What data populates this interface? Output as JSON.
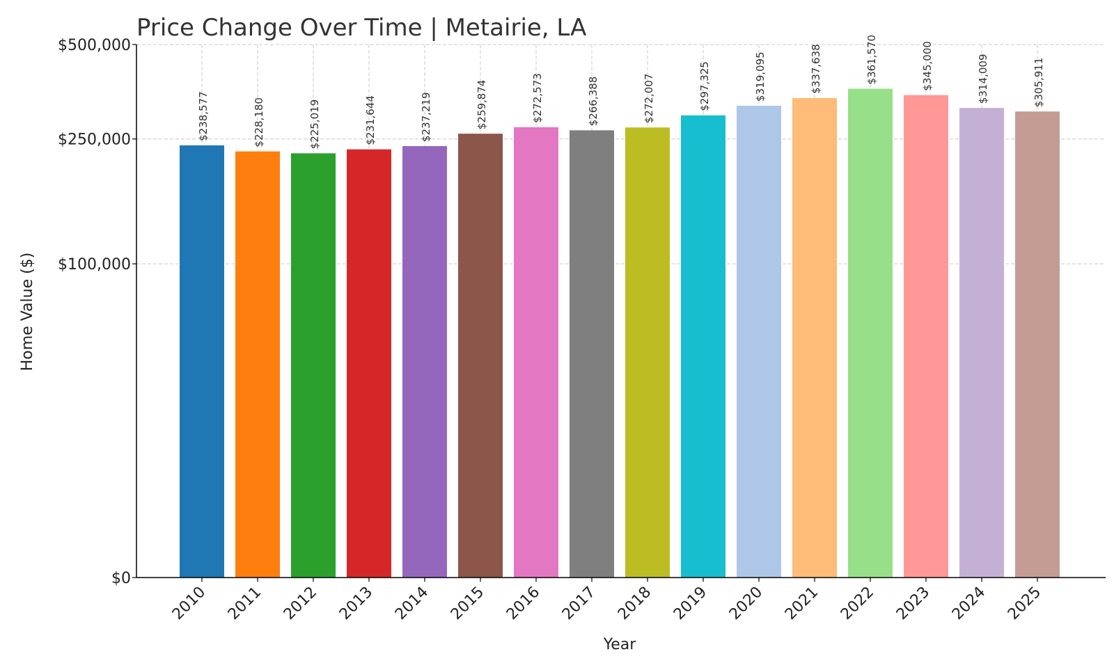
{
  "chart_data": {
    "type": "bar",
    "title": "Price Change Over Time | Metairie, LA",
    "xlabel": "Year",
    "ylabel": "Home Value ($)",
    "y_scale": "symlog",
    "ylim": [
      0,
      500000
    ],
    "yticks": [
      0,
      100000,
      250000,
      500000
    ],
    "ytick_labels": [
      "$0",
      "$100,000",
      "$250,000",
      "$500,000"
    ],
    "grid": true,
    "categories": [
      "2010",
      "2011",
      "2012",
      "2013",
      "2014",
      "2015",
      "2016",
      "2017",
      "2018",
      "2019",
      "2020",
      "2021",
      "2022",
      "2023",
      "2024",
      "2025"
    ],
    "values": [
      238577,
      228180,
      225019,
      231644,
      237219,
      259874,
      272573,
      266388,
      272007,
      297325,
      319095,
      337638,
      361570,
      345000,
      314009,
      305911
    ],
    "data_labels": [
      "$238,577",
      "$228,180",
      "$225,019",
      "$231,644",
      "$237,219",
      "$259,874",
      "$272,573",
      "$266,388",
      "$272,007",
      "$297,325",
      "$319,095",
      "$337,638",
      "$361,570",
      "$345,000",
      "$314,009",
      "$305,911"
    ],
    "colors": [
      "#1f77b4",
      "#ff7f0e",
      "#2ca02c",
      "#d62728",
      "#9467bd",
      "#8c564b",
      "#e377c2",
      "#7f7f7f",
      "#bcbd22",
      "#17becf",
      "#aec7e8",
      "#ffbb78",
      "#98df8a",
      "#ff9896",
      "#c5b0d5",
      "#c49c94"
    ]
  }
}
